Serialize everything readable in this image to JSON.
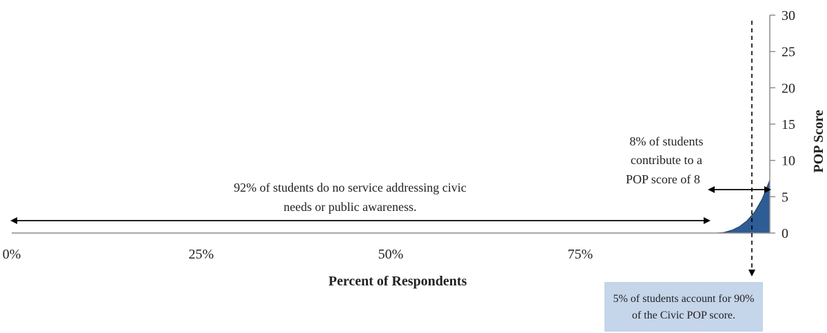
{
  "chart_data": {
    "type": "area",
    "x": [
      0.93,
      0.94,
      0.95,
      0.96,
      0.97,
      0.98,
      0.99,
      1.0
    ],
    "y": [
      0,
      0.1,
      0.4,
      0.9,
      1.7,
      2.9,
      4.7,
      7.3
    ],
    "xlabel": "Percent of Respondents",
    "ylabel": "POP Score",
    "xlim": [
      0,
      1
    ],
    "ylim": [
      0,
      30
    ],
    "x_ticks": [
      {
        "value": 0,
        "label": "0%"
      },
      {
        "value": 0.25,
        "label": "25%"
      },
      {
        "value": 0.5,
        "label": "50%"
      },
      {
        "value": 0.75,
        "label": "75%"
      }
    ],
    "y_ticks": [
      {
        "value": 0,
        "label": "0"
      },
      {
        "value": 5,
        "label": "5"
      },
      {
        "value": 10,
        "label": "10"
      },
      {
        "value": 15,
        "label": "15"
      },
      {
        "value": 20,
        "label": "20"
      },
      {
        "value": 25,
        "label": "25"
      },
      {
        "value": 30,
        "label": "30"
      }
    ],
    "y_axis_side": "right",
    "grid": false,
    "area_color": "#2e5c94",
    "annotations": {
      "left_span": {
        "text_line1": "92% of students do no service addressing civic",
        "text_line2": "needs or public awareness.",
        "from": 0,
        "to": 0.92
      },
      "right_span": {
        "text_line1": "8% of students",
        "text_line2": "contribute to a",
        "text_line3": "POP score of 8",
        "from": 0.92,
        "to": 1.0
      },
      "dashed_marker": {
        "x": 0.95,
        "callout_line1": "5% of students account for 90%",
        "callout_line2": "of the Civic POP score.",
        "callout_color": "#c5d5ea"
      }
    }
  }
}
